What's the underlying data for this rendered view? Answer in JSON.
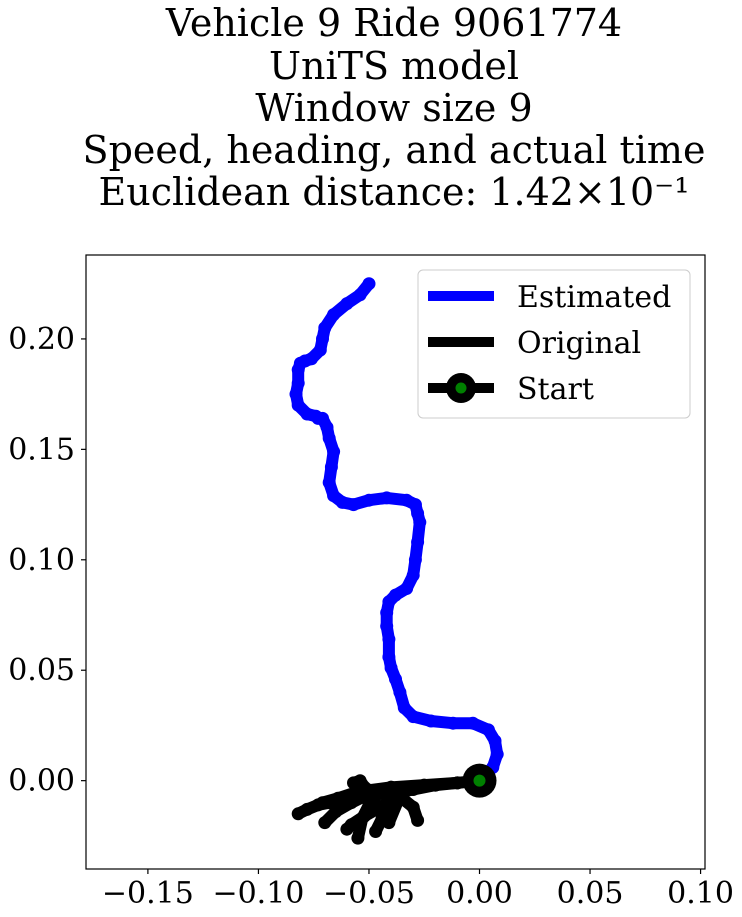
{
  "chart_data": {
    "type": "line",
    "title_lines": [
      "Vehicle 9 Ride 9061774",
      "UniTS model",
      "Window size 9",
      "Speed, heading, and actual time",
      "Euclidean distance: 1.42×10⁻¹"
    ],
    "xlabel": "",
    "ylabel": "",
    "xlim": [
      -0.178,
      0.102
    ],
    "ylim": [
      -0.04,
      0.238
    ],
    "xticks": [
      -0.15,
      -0.1,
      -0.05,
      0.0,
      0.05,
      0.1
    ],
    "xtick_labels": [
      "−0.15",
      "−0.10",
      "−0.05",
      "0.00",
      "0.05",
      "0.10"
    ],
    "yticks": [
      0.0,
      0.05,
      0.1,
      0.15,
      0.2
    ],
    "ytick_labels": [
      "0.00",
      "0.05",
      "0.10",
      "0.15",
      "0.20"
    ],
    "grid": false,
    "legend_position": "top-right",
    "series": [
      {
        "name": "Estimated",
        "color": "#0000ff",
        "x": [
          0.0,
          0.006,
          0.008,
          0.007,
          0.004,
          -0.003,
          -0.012,
          -0.022,
          -0.03,
          -0.034,
          -0.036,
          -0.038,
          -0.04,
          -0.041,
          -0.041,
          -0.042,
          -0.042,
          -0.041,
          -0.038,
          -0.033,
          -0.03,
          -0.029,
          -0.028,
          -0.027,
          -0.028,
          -0.029,
          -0.033,
          -0.042,
          -0.05,
          -0.057,
          -0.062,
          -0.066,
          -0.068,
          -0.067,
          -0.066,
          -0.068,
          -0.069,
          -0.071,
          -0.073,
          -0.074,
          -0.078,
          -0.082,
          -0.083,
          -0.082,
          -0.082,
          -0.081,
          -0.079,
          -0.076,
          -0.072,
          -0.071,
          -0.07,
          -0.066,
          -0.06,
          -0.054,
          -0.05
        ],
        "y": [
          0.0,
          0.006,
          0.012,
          0.018,
          0.023,
          0.026,
          0.026,
          0.027,
          0.029,
          0.033,
          0.04,
          0.046,
          0.051,
          0.056,
          0.064,
          0.07,
          0.076,
          0.081,
          0.084,
          0.087,
          0.093,
          0.1,
          0.108,
          0.117,
          0.121,
          0.125,
          0.127,
          0.128,
          0.127,
          0.125,
          0.126,
          0.129,
          0.135,
          0.142,
          0.149,
          0.155,
          0.16,
          0.164,
          0.164,
          0.165,
          0.166,
          0.17,
          0.175,
          0.18,
          0.186,
          0.189,
          0.19,
          0.191,
          0.195,
          0.2,
          0.205,
          0.211,
          0.216,
          0.22,
          0.225
        ]
      },
      {
        "name": "Original",
        "color": "#000000",
        "segments": [
          {
            "x": [
              0.0,
              -0.01,
              -0.02,
              -0.032,
              -0.042,
              -0.05,
              -0.057,
              -0.062,
              -0.068,
              -0.073,
              -0.078,
              -0.082
            ],
            "y": [
              0.0,
              -0.001,
              -0.002,
              -0.003,
              -0.004,
              -0.005,
              -0.007,
              -0.009,
              -0.01,
              -0.011,
              -0.013,
              -0.015
            ]
          },
          {
            "x": [
              -0.01,
              -0.025,
              -0.04,
              -0.055,
              -0.064,
              -0.071
            ],
            "y": [
              -0.001,
              -0.002,
              -0.003,
              -0.005,
              -0.008,
              -0.01
            ]
          },
          {
            "x": [
              -0.02,
              -0.03,
              -0.04,
              -0.05,
              -0.058,
              -0.065,
              -0.07
            ],
            "y": [
              -0.002,
              -0.004,
              -0.006,
              -0.006,
              -0.01,
              -0.014,
              -0.019
            ]
          },
          {
            "x": [
              -0.032,
              -0.038,
              -0.045,
              -0.052,
              -0.058,
              -0.06
            ],
            "y": [
              -0.003,
              -0.008,
              -0.012,
              -0.016,
              -0.02,
              -0.022
            ]
          },
          {
            "x": [
              -0.04,
              -0.046,
              -0.05,
              -0.053,
              -0.055
            ],
            "y": [
              -0.003,
              -0.006,
              -0.011,
              -0.017,
              -0.026
            ]
          },
          {
            "x": [
              -0.047,
              -0.052,
              -0.054,
              -0.057
            ],
            "y": [
              -0.006,
              -0.003,
              0.0,
              -0.001
            ]
          },
          {
            "x": [
              -0.042,
              -0.035,
              -0.03,
              -0.028
            ],
            "y": [
              -0.005,
              -0.008,
              -0.012,
              -0.018
            ]
          },
          {
            "x": [
              -0.04,
              -0.044,
              -0.047
            ],
            "y": [
              -0.012,
              -0.017,
              -0.023
            ]
          },
          {
            "x": [
              -0.036,
              -0.041
            ],
            "y": [
              -0.007,
              -0.019
            ]
          }
        ]
      },
      {
        "name": "Start",
        "color": "#000000",
        "marker_face_color": "#008000",
        "x": [
          0.0
        ],
        "y": [
          0.0
        ]
      }
    ]
  }
}
